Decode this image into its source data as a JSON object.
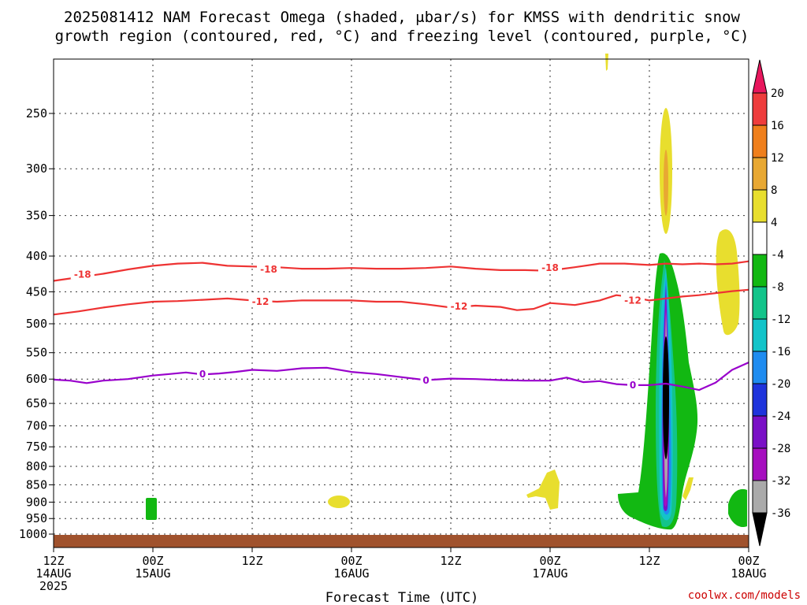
{
  "title": {
    "line1": "2025081412 NAM Forecast Omega (shaded, μbar/s) for KMSS with dendritic snow",
    "line2": "growth region (contoured, red, °C) and freezing level (contoured, purple, °C)"
  },
  "credit": "coolwx.com/models",
  "chart_data": {
    "type": "time-height",
    "xlabel": "Forecast Time (UTC)",
    "x_ticks": [
      {
        "hours": 0,
        "line1": "12Z",
        "line2": "14AUG",
        "line3": "2025"
      },
      {
        "hours": 12,
        "line1": "00Z",
        "line2": "15AUG",
        "line3": ""
      },
      {
        "hours": 24,
        "line1": "12Z",
        "line2": "",
        "line3": ""
      },
      {
        "hours": 36,
        "line1": "00Z",
        "line2": "16AUG",
        "line3": ""
      },
      {
        "hours": 48,
        "line1": "12Z",
        "line2": "",
        "line3": ""
      },
      {
        "hours": 60,
        "line1": "00Z",
        "line2": "17AUG",
        "line3": ""
      },
      {
        "hours": 72,
        "line1": "12Z",
        "line2": "",
        "line3": ""
      },
      {
        "hours": 84,
        "line1": "00Z",
        "line2": "18AUG",
        "line3": ""
      }
    ],
    "y_axis": {
      "scale": "log",
      "range_hpa": [
        1050,
        200
      ],
      "reversed": true
    },
    "y_ticks": [
      250,
      300,
      350,
      400,
      450,
      500,
      550,
      600,
      650,
      700,
      750,
      800,
      850,
      900,
      950,
      1000
    ],
    "grid": true,
    "colorbar": {
      "labels": [
        "20",
        "16",
        "12",
        "8",
        "4",
        "-4",
        "-8",
        "-12",
        "-16",
        "-20",
        "-24",
        "-28",
        "-32",
        "-36"
      ],
      "colors": [
        "#e8175d",
        "#ee3c3c",
        "#ef7f1c",
        "#e8a833",
        "#e8de2e",
        "#ffffff",
        "#12b812",
        "#13c48a",
        "#13c4c9",
        "#1f8cf0",
        "#1f34dc",
        "#7a10c6",
        "#a60fbf",
        "#aaaaaa",
        "#000000"
      ]
    },
    "contours": [
      {
        "level": -18,
        "color": "#ee3333",
        "points": [
          [
            0,
            434
          ],
          [
            3,
            429
          ],
          [
            6,
            424
          ],
          [
            9,
            418
          ],
          [
            12,
            413
          ],
          [
            15,
            410
          ],
          [
            18,
            409
          ],
          [
            21,
            413
          ],
          [
            24,
            414
          ],
          [
            27,
            415
          ],
          [
            30,
            417
          ],
          [
            33,
            417
          ],
          [
            36,
            416
          ],
          [
            39,
            417
          ],
          [
            42,
            417
          ],
          [
            45,
            416
          ],
          [
            48,
            414
          ],
          [
            51,
            417
          ],
          [
            54,
            419
          ],
          [
            57,
            419
          ],
          [
            60,
            420
          ],
          [
            61,
            418
          ],
          [
            63,
            415
          ],
          [
            66,
            410
          ],
          [
            69,
            410
          ],
          [
            72,
            412
          ],
          [
            74,
            410
          ],
          [
            76,
            411
          ],
          [
            78,
            410
          ],
          [
            80,
            411
          ],
          [
            82,
            410
          ],
          [
            84,
            407
          ]
        ],
        "labels": [
          [
            3.5,
            425
          ],
          [
            26,
            418
          ],
          [
            60,
            416
          ]
        ]
      },
      {
        "level": -12,
        "color": "#ee3333",
        "points": [
          [
            0,
            485
          ],
          [
            3,
            480
          ],
          [
            6,
            474
          ],
          [
            9,
            469
          ],
          [
            12,
            465
          ],
          [
            15,
            464
          ],
          [
            18,
            462
          ],
          [
            21,
            460
          ],
          [
            24,
            463
          ],
          [
            27,
            465
          ],
          [
            30,
            463
          ],
          [
            33,
            463
          ],
          [
            36,
            463
          ],
          [
            39,
            465
          ],
          [
            42,
            465
          ],
          [
            45,
            469
          ],
          [
            48,
            474
          ],
          [
            51,
            471
          ],
          [
            54,
            473
          ],
          [
            56,
            478
          ],
          [
            58,
            476
          ],
          [
            60,
            467
          ],
          [
            63,
            470
          ],
          [
            66,
            463
          ],
          [
            68,
            455
          ],
          [
            70,
            458
          ],
          [
            72,
            463
          ],
          [
            74,
            460
          ],
          [
            76,
            457
          ],
          [
            78,
            455
          ],
          [
            80,
            452
          ],
          [
            82,
            449
          ],
          [
            84,
            447
          ]
        ],
        "labels": [
          [
            25,
            465
          ],
          [
            49,
            472
          ],
          [
            70,
            463
          ]
        ]
      },
      {
        "level": 0,
        "color": "#9900cc",
        "points": [
          [
            0,
            601
          ],
          [
            2,
            603
          ],
          [
            4,
            608
          ],
          [
            6,
            603
          ],
          [
            9,
            600
          ],
          [
            12,
            593
          ],
          [
            14,
            590
          ],
          [
            16,
            587
          ],
          [
            18,
            591
          ],
          [
            20,
            589
          ],
          [
            22,
            586
          ],
          [
            24,
            582
          ],
          [
            27,
            584
          ],
          [
            30,
            579
          ],
          [
            33,
            578
          ],
          [
            36,
            586
          ],
          [
            39,
            590
          ],
          [
            42,
            596
          ],
          [
            45,
            602
          ],
          [
            48,
            599
          ],
          [
            51,
            600
          ],
          [
            54,
            602
          ],
          [
            57,
            603
          ],
          [
            60,
            603
          ],
          [
            62,
            597
          ],
          [
            64,
            606
          ],
          [
            66,
            604
          ],
          [
            68,
            610
          ],
          [
            70,
            612
          ],
          [
            72,
            612
          ],
          [
            74,
            609
          ],
          [
            76,
            615
          ],
          [
            78,
            622
          ],
          [
            80,
            607
          ],
          [
            82,
            582
          ],
          [
            84,
            568
          ]
        ],
        "labels": [
          [
            18,
            590
          ],
          [
            45,
            603
          ],
          [
            70,
            612
          ]
        ]
      }
    ],
    "omega_features": [
      {
        "name": "main-ascent-core",
        "hours": [
          73,
          74
        ],
        "pressure_hpa": [
          400,
          970
        ],
        "min_value": -36
      },
      {
        "name": "upper-sinking-pocket",
        "hours": [
          73,
          74
        ],
        "pressure_hpa": [
          260,
          370
        ],
        "max_value": 12
      },
      {
        "name": "right-sinking-pocket",
        "hours": [
          80,
          83
        ],
        "pressure_hpa": [
          370,
          520
        ],
        "max_value": 4
      }
    ],
    "terrain": {
      "pressure_hpa": 1013,
      "color": "#a0522d"
    }
  }
}
